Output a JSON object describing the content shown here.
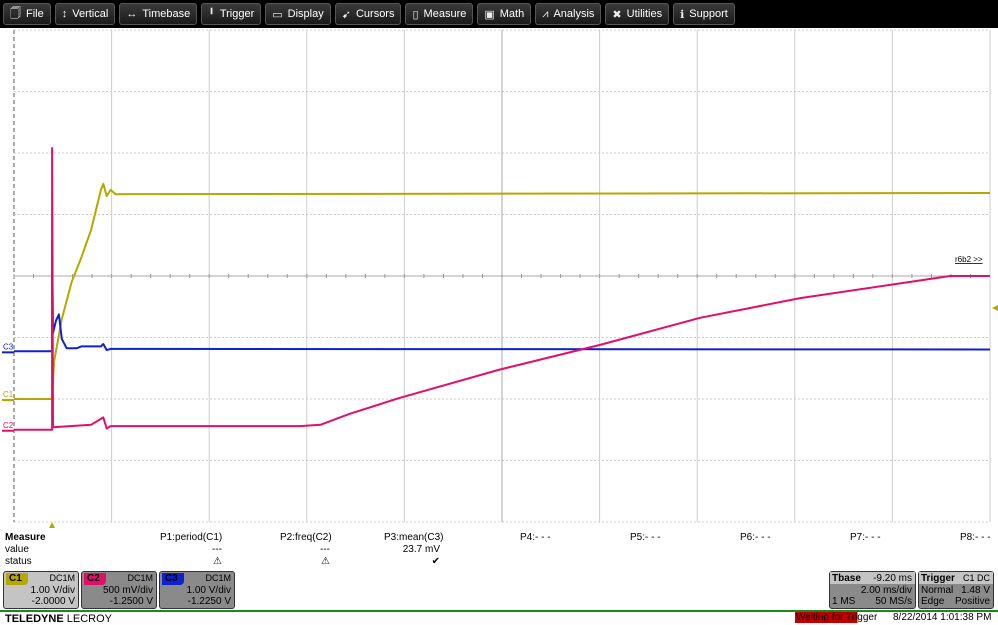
{
  "menu": [
    {
      "label": "File",
      "icon": "clipboard-icon",
      "glyph": "🗍"
    },
    {
      "label": "Vertical",
      "icon": "vertical-arrows-icon",
      "glyph": "↕"
    },
    {
      "label": "Timebase",
      "icon": "horizontal-arrows-icon",
      "glyph": "↔"
    },
    {
      "label": "Trigger",
      "icon": "trigger-flag-icon",
      "glyph": "╹"
    },
    {
      "label": "Display",
      "icon": "display-icon",
      "glyph": "▭"
    },
    {
      "label": "Cursors",
      "icon": "cursor-icon",
      "glyph": "➹"
    },
    {
      "label": "Measure",
      "icon": "measure-icon",
      "glyph": "▯"
    },
    {
      "label": "Math",
      "icon": "calculator-icon",
      "glyph": "▣"
    },
    {
      "label": "Analysis",
      "icon": "chart-icon",
      "glyph": "⩘"
    },
    {
      "label": "Utilities",
      "icon": "tools-icon",
      "glyph": "✖"
    },
    {
      "label": "Support",
      "icon": "info-icon",
      "glyph": "ℹ"
    }
  ],
  "channels": [
    {
      "id": "C1",
      "color": "#b5a800",
      "coupling": "DC1M",
      "vdiv": "1.00 V/div",
      "offset": "-2.0000 V",
      "vdiv_v": 1.0,
      "offset_v": -2.0,
      "box_bg": "#c4c4c4",
      "points": [
        [
          -0.78,
          0
        ],
        [
          0,
          0
        ],
        [
          0.04,
          0.6
        ],
        [
          0.2,
          1.3
        ],
        [
          0.4,
          1.9
        ],
        [
          0.6,
          2.3
        ],
        [
          0.8,
          2.75
        ],
        [
          1.0,
          3.4
        ],
        [
          1.05,
          3.5
        ],
        [
          1.12,
          3.3
        ],
        [
          1.2,
          3.4
        ],
        [
          1.3,
          3.33
        ],
        [
          19.22,
          3.35
        ]
      ]
    },
    {
      "id": "C2",
      "color": "#e0106a",
      "coupling": "DC1M",
      "vdiv": "500 mV/div",
      "offset": "-1.2500 V",
      "vdiv_v": 0.5,
      "offset_v": -1.25,
      "box_bg": "#8a8a8a",
      "points": [
        [
          -0.78,
          0
        ],
        [
          0,
          0
        ],
        [
          0,
          2.29
        ],
        [
          0.02,
          0.02
        ],
        [
          0.8,
          0.04
        ],
        [
          1.05,
          0.1
        ],
        [
          1.12,
          0.01
        ],
        [
          1.2,
          0.03
        ],
        [
          5.08,
          0.03
        ],
        [
          5.5,
          0.04
        ],
        [
          6.1,
          0.13
        ],
        [
          7.13,
          0.26
        ],
        [
          9.18,
          0.49
        ],
        [
          11.23,
          0.69
        ],
        [
          13.28,
          0.91
        ],
        [
          15.33,
          1.07
        ],
        [
          17.38,
          1.19
        ],
        [
          18.4,
          1.25
        ],
        [
          19.22,
          1.25
        ]
      ]
    },
    {
      "id": "C3",
      "color": "#1020d0",
      "coupling": "DC1M",
      "vdiv": "1.00 V/div",
      "offset": "-1.2250 V",
      "vdiv_v": 1.0,
      "offset_v": -1.225,
      "box_bg": "#8a8a8a",
      "points": [
        [
          -0.78,
          0
        ],
        [
          0,
          0
        ],
        [
          0,
          1.8
        ],
        [
          0.02,
          0.3
        ],
        [
          0.08,
          0.5
        ],
        [
          0.14,
          0.6
        ],
        [
          0.2,
          0.2
        ],
        [
          0.3,
          0.05
        ],
        [
          0.5,
          0.05
        ],
        [
          0.6,
          0.08
        ],
        [
          1.0,
          0.08
        ],
        [
          1.05,
          0.12
        ],
        [
          1.12,
          0.02
        ],
        [
          1.2,
          0.04
        ],
        [
          19.22,
          0.03
        ]
      ]
    }
  ],
  "grid": {
    "h_divs": 10,
    "v_divs": 8,
    "time_per_div_ms": 2.0,
    "t_left_ms": -0.78
  },
  "marker_label": "r6b2 >>",
  "measure": {
    "title": "Measure",
    "row_value": "value",
    "row_status": "status",
    "params": [
      {
        "name": "P1:period(C1)",
        "value": "---",
        "status": "⚠"
      },
      {
        "name": "P2:freq(C2)",
        "value": "---",
        "status": "⚠"
      },
      {
        "name": "P3:mean(C3)",
        "value": "23.7 mV",
        "status": "✔"
      },
      {
        "name": "P4:- - -"
      },
      {
        "name": "P5:- - -"
      },
      {
        "name": "P6:- - -"
      },
      {
        "name": "P7:- - -"
      },
      {
        "name": "P8:- - -"
      }
    ]
  },
  "tbase": {
    "title": "Tbase",
    "delay": "-9.20 ms",
    "tdiv": "2.00 ms/div",
    "samples": "1 MS",
    "rate": "50 MS/s"
  },
  "trigger": {
    "title": "Trigger",
    "source": "C1 DC",
    "mode": "Normal",
    "level": "1.48 V",
    "type": "Edge",
    "slope": "Positive"
  },
  "footer": {
    "brand_a": "TELEDYNE",
    "brand_b": "LECROY",
    "status": "Waiting for Trigger",
    "status_color": "#c00000",
    "datetime": "8/22/2014 1:01:38 PM"
  }
}
